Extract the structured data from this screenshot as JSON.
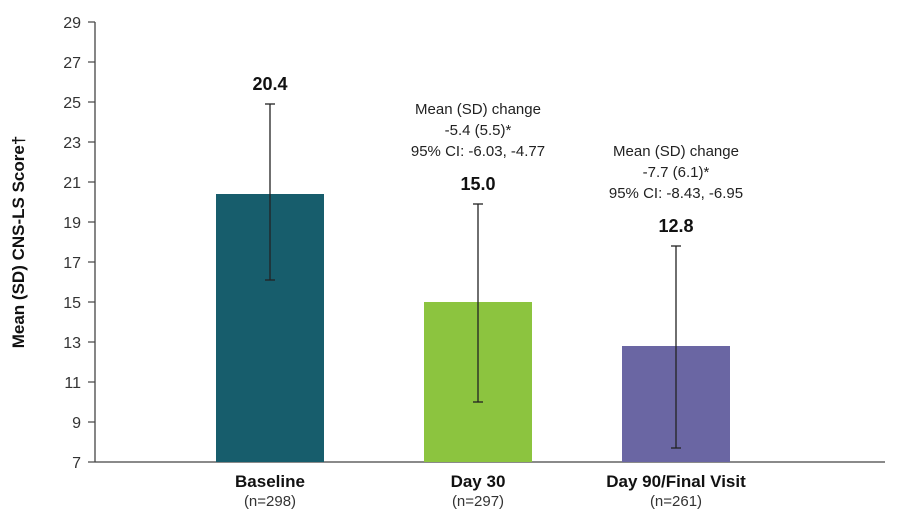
{
  "chart_data": {
    "type": "bar",
    "ylabel": "Mean (SD) CNS-LS Score†",
    "ylim": [
      7,
      29
    ],
    "yticks": [
      7,
      9,
      11,
      13,
      15,
      17,
      19,
      21,
      23,
      25,
      27,
      29
    ],
    "categories": [
      "Baseline",
      "Day 30",
      "Day 90/Final Visit"
    ],
    "n_labels": [
      "(n=298)",
      "(n=297)",
      "(n=261)"
    ],
    "values": [
      20.4,
      15.0,
      12.8
    ],
    "value_labels": [
      "20.4",
      "15.0",
      "12.8"
    ],
    "error_low": [
      16.1,
      10.0,
      7.7
    ],
    "error_high": [
      24.9,
      19.9,
      17.8
    ],
    "colors": [
      "#175d6c",
      "#8cc43f",
      "#6a66a3"
    ],
    "annotations": [
      {
        "category": "Day 30",
        "lines": [
          "Mean (SD) change",
          "-5.4 (5.5)*",
          "95% CI: -6.03, -4.77"
        ]
      },
      {
        "category": "Day 90/Final Visit",
        "lines": [
          "Mean (SD) change",
          "-7.7 (6.1)*",
          "95% CI: -8.43, -6.95"
        ]
      }
    ],
    "grid": false,
    "legend": "none"
  }
}
